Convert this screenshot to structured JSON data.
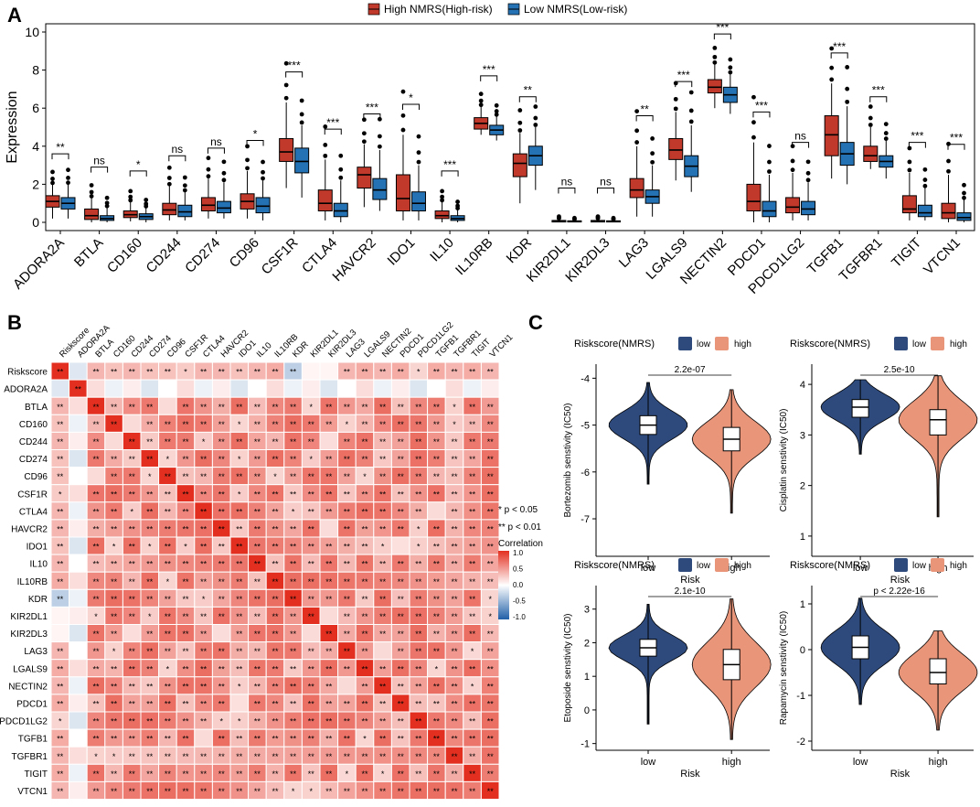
{
  "panels": {
    "a": "A",
    "b": "B",
    "c": "C"
  },
  "colors": {
    "high": "#c0392b",
    "low": "#2471b3",
    "violin_low": "#2e4a7d",
    "violin_high": "#e8957a",
    "heat_pos": "#e32f1f",
    "heat_neg": "#2060a8"
  },
  "chart_data": [
    {
      "id": "A",
      "type": "box",
      "title": "",
      "xlabel": "",
      "ylabel": "Expression",
      "ylim": [
        0,
        10.5
      ],
      "yticks": [
        0,
        2,
        4,
        6,
        8,
        10
      ],
      "legend": {
        "position": "top-center",
        "entries": [
          "High NMRS(High-risk)",
          "Low NMRS(Low-risk)"
        ]
      },
      "categories": [
        "ADORA2A",
        "BTLA",
        "CD160",
        "CD244",
        "CD274",
        "CD96",
        "CSF1R",
        "CTLA4",
        "HAVCR2",
        "IDO1",
        "IL10",
        "IL10RB",
        "KDR",
        "KIR2DL1",
        "KIR2DL3",
        "LAG3",
        "LGALS9",
        "NECTIN2",
        "PDCD1",
        "PDCD1LG2",
        "TGFB1",
        "TGFBR1",
        "TIGIT",
        "VTCN1"
      ],
      "significance": [
        "**",
        "ns",
        "*",
        "ns",
        "ns",
        "*",
        "***",
        "***",
        "***",
        "*",
        "***",
        "***",
        "**",
        "ns",
        "ns",
        "**",
        "***",
        "***",
        "***",
        "ns",
        "***",
        "***",
        "***",
        "***"
      ],
      "series": [
        {
          "name": "High NMRS(High-risk)",
          "boxes": [
            [
              0.2,
              0.8,
              1.1,
              1.4,
              2.0
            ],
            [
              0.0,
              0.15,
              0.35,
              0.7,
              1.3
            ],
            [
              0.05,
              0.25,
              0.4,
              0.6,
              1.1
            ],
            [
              0.1,
              0.4,
              0.65,
              1.0,
              1.9
            ],
            [
              0.2,
              0.6,
              0.9,
              1.3,
              2.3
            ],
            [
              0.2,
              0.7,
              1.1,
              1.5,
              2.7
            ],
            [
              1.8,
              3.2,
              3.7,
              4.4,
              6.3
            ],
            [
              0.1,
              0.6,
              1.0,
              1.7,
              3.3
            ],
            [
              0.8,
              1.8,
              2.5,
              2.9,
              4.1
            ],
            [
              0.1,
              0.6,
              1.25,
              2.5,
              4.6
            ],
            [
              0.0,
              0.2,
              0.35,
              0.6,
              1.1
            ],
            [
              4.6,
              4.9,
              5.2,
              5.5,
              6.1
            ],
            [
              1.0,
              2.4,
              3.1,
              3.6,
              4.7
            ],
            [
              0.0,
              0.02,
              0.05,
              0.1,
              0.2
            ],
            [
              0.0,
              0.02,
              0.05,
              0.1,
              0.2
            ],
            [
              0.3,
              1.3,
              1.7,
              2.3,
              4.0
            ],
            [
              2.2,
              3.3,
              3.8,
              4.4,
              5.8
            ],
            [
              6.0,
              6.8,
              7.1,
              7.5,
              8.3
            ],
            [
              0.0,
              0.6,
              1.1,
              2.0,
              4.2
            ],
            [
              0.1,
              0.5,
              0.8,
              1.3,
              2.6
            ],
            [
              2.3,
              3.5,
              4.6,
              5.6,
              7.3
            ],
            [
              2.8,
              3.2,
              3.5,
              4.0,
              5.0
            ],
            [
              0.1,
              0.5,
              0.7,
              1.4,
              2.6
            ],
            [
              0.0,
              0.2,
              0.5,
              1.0,
              2.5
            ]
          ]
        },
        {
          "name": "Low NMRS(Low-risk)",
          "boxes": [
            [
              0.2,
              0.7,
              1.0,
              1.3,
              2.0
            ],
            [
              0.0,
              0.1,
              0.2,
              0.35,
              0.8
            ],
            [
              0.0,
              0.15,
              0.3,
              0.45,
              0.8
            ],
            [
              0.1,
              0.3,
              0.55,
              0.9,
              1.6
            ],
            [
              0.2,
              0.5,
              0.75,
              1.1,
              2.1
            ],
            [
              0.1,
              0.5,
              0.85,
              1.3,
              2.2
            ],
            [
              1.3,
              2.6,
              3.2,
              3.9,
              5.1
            ],
            [
              0.0,
              0.3,
              0.6,
              1.0,
              2.2
            ],
            [
              0.6,
              1.2,
              1.7,
              2.3,
              3.8
            ],
            [
              0.1,
              0.6,
              1.0,
              1.6,
              3.0
            ],
            [
              0.0,
              0.1,
              0.2,
              0.35,
              0.7
            ],
            [
              4.3,
              4.6,
              4.85,
              5.1,
              5.6
            ],
            [
              1.7,
              3.0,
              3.5,
              4.0,
              5.0
            ],
            [
              0.0,
              0.02,
              0.04,
              0.08,
              0.15
            ],
            [
              0.0,
              0.02,
              0.04,
              0.08,
              0.15
            ],
            [
              0.3,
              1.0,
              1.35,
              1.7,
              3.0
            ],
            [
              1.6,
              2.4,
              2.95,
              3.5,
              5.1
            ],
            [
              5.7,
              6.3,
              6.7,
              7.1,
              7.8
            ],
            [
              0.0,
              0.3,
              0.6,
              1.1,
              2.5
            ],
            [
              0.1,
              0.4,
              0.7,
              1.1,
              2.1
            ],
            [
              2.0,
              3.0,
              3.6,
              4.2,
              6.1
            ],
            [
              2.3,
              2.9,
              3.2,
              3.5,
              4.3
            ],
            [
              0.1,
              0.3,
              0.5,
              0.9,
              1.8
            ],
            [
              0.0,
              0.1,
              0.25,
              0.5,
              1.2
            ]
          ]
        }
      ]
    },
    {
      "id": "B",
      "type": "heatmap",
      "title": "",
      "genes": [
        "Riskscore",
        "ADORA2A",
        "BTLA",
        "CD160",
        "CD244",
        "CD274",
        "CD96",
        "CSF1R",
        "CTLA4",
        "HAVCR2",
        "IDO1",
        "IL10",
        "IL10RB",
        "KDR",
        "KIR2DL1",
        "KIR2DL3",
        "LAG3",
        "LGALS9",
        "NECTIN2",
        "PDCD1",
        "PDCD1LG2",
        "TGFB1",
        "TGFBR1",
        "TIGIT",
        "VTCN1"
      ],
      "legend": {
        "title": "Correlation",
        "ticks": [
          "1.0",
          "0.5",
          "0.0",
          "-0.5",
          "-1.0"
        ],
        "notes": [
          "* p < 0.05",
          "** p < 0.01"
        ]
      },
      "ylim": [
        -1,
        1
      ]
    },
    {
      "id": "C1",
      "type": "violin",
      "legend_title": "Riskscore(NMRS)",
      "legend_entries": [
        "low",
        "high"
      ],
      "categories": [
        "low",
        "high"
      ],
      "xlabel": "Risk",
      "ylabel": "Bortezomib senstivity (IC50)",
      "ylim": [
        -7.8,
        -3.7
      ],
      "yticks": [
        -7,
        -6,
        -5,
        -4
      ],
      "pvalue": "2.2e-07",
      "boxes": [
        [
          -5.7,
          -5.2,
          -5.0,
          -4.8,
          -4.3
        ],
        [
          -6.2,
          -5.55,
          -5.3,
          -5.05,
          -4.5
        ]
      ]
    },
    {
      "id": "C2",
      "type": "violin",
      "legend_title": "Riskscore(NMRS)",
      "legend_entries": [
        "low",
        "high"
      ],
      "categories": [
        "low",
        "high"
      ],
      "xlabel": "Risk",
      "ylabel": "Cisplatin senstivity (IC50)",
      "ylim": [
        0.6,
        4.4
      ],
      "yticks": [
        1,
        2,
        3,
        4
      ],
      "pvalue": "2.5e-10",
      "boxes": [
        [
          3.0,
          3.35,
          3.55,
          3.7,
          3.95
        ],
        [
          2.1,
          3.0,
          3.3,
          3.5,
          3.9
        ]
      ]
    },
    {
      "id": "C3",
      "type": "violin",
      "legend_title": "Riskscore(NMRS)",
      "legend_entries": [
        "low",
        "high"
      ],
      "categories": [
        "low",
        "high"
      ],
      "xlabel": "Risk",
      "ylabel": "Etoposide senstivity (IC50)",
      "ylim": [
        -1.2,
        3.7
      ],
      "yticks": [
        -1,
        0,
        1,
        2,
        3
      ],
      "pvalue": "2.1e-10",
      "boxes": [
        [
          0.5,
          1.6,
          1.85,
          2.1,
          2.8
        ],
        [
          0.2,
          0.9,
          1.35,
          1.8,
          2.9
        ]
      ]
    },
    {
      "id": "C4",
      "type": "violin",
      "legend_title": "Riskscore(NMRS)",
      "legend_entries": [
        "low",
        "high"
      ],
      "categories": [
        "low",
        "high"
      ],
      "xlabel": "Risk",
      "ylabel": "Rapamycin senstivity (IC50)",
      "ylim": [
        -2.2,
        1.4
      ],
      "yticks": [
        -2,
        -1,
        0,
        1
      ],
      "pvalue": "p < 2.22e-16",
      "boxes": [
        [
          -0.6,
          -0.2,
          0.05,
          0.3,
          0.9
        ],
        [
          -1.2,
          -0.75,
          -0.5,
          -0.2,
          0.2
        ]
      ]
    }
  ]
}
